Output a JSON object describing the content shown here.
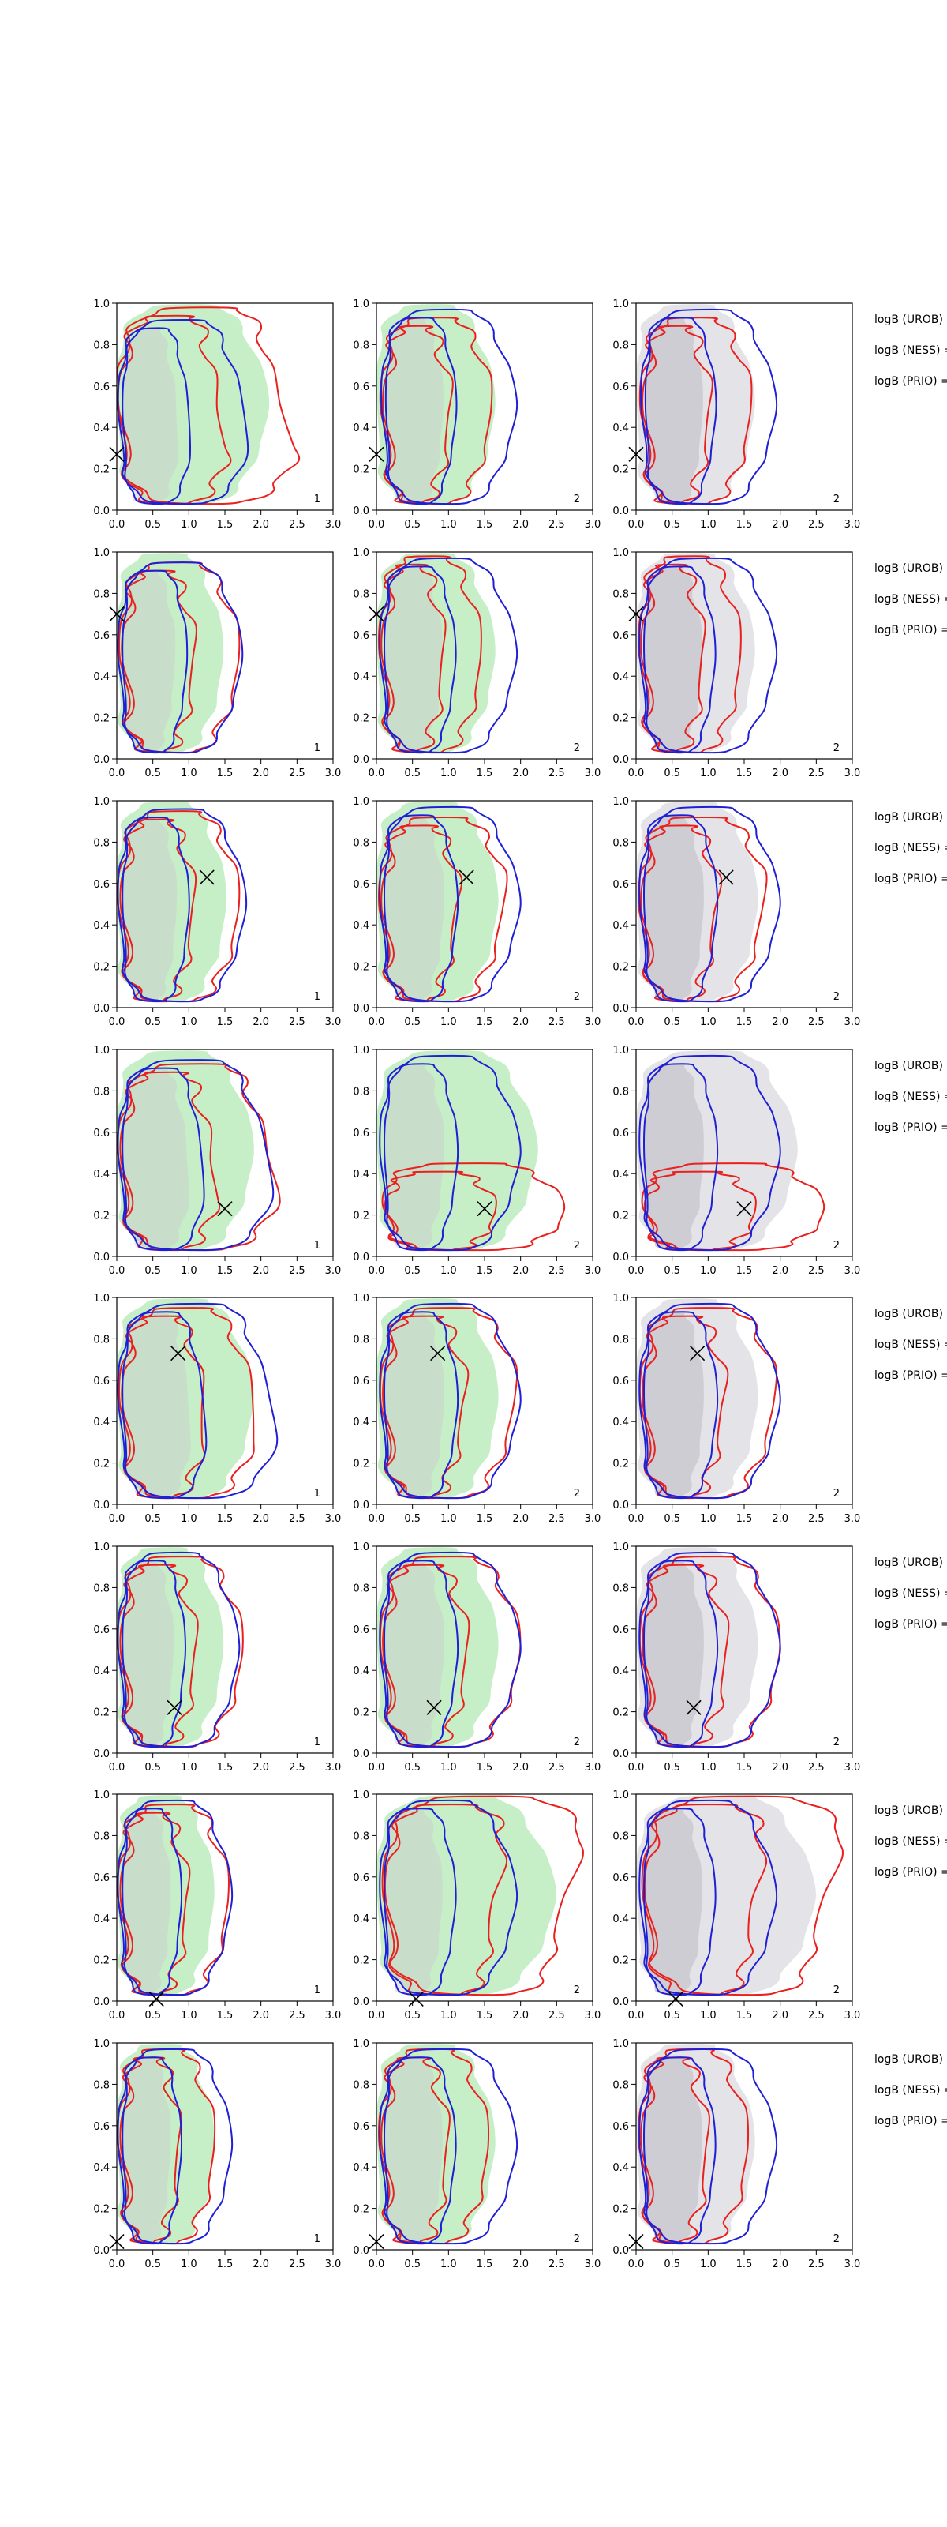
{
  "chart_data": {
    "type": "contour",
    "grid": {
      "rows": 8,
      "cols": 3
    },
    "xlim": [
      0.0,
      3.0
    ],
    "ylim": [
      0.0,
      1.0
    ],
    "xticks": [
      "0.0",
      "0.5",
      "1.0",
      "1.5",
      "2.0",
      "2.5",
      "3.0"
    ],
    "yticks": [
      "0.0",
      "0.2",
      "0.4",
      "0.6",
      "0.8",
      "1.0"
    ],
    "panel_tags": [
      "1",
      "2",
      "2"
    ],
    "bf_labels": [
      "logB (UROB) =",
      "logB (NESS) =",
      "logB (PRIO) ="
    ],
    "colors": {
      "fill_a": "#c7efc7",
      "fill_b": "#e4e4e8",
      "inner_fill": "#c9c9cf",
      "contour_red": "#e8211f",
      "contour_blue": "#1f1fd6",
      "marker": "#000000"
    },
    "rows": [
      {
        "marker": [
          0.0,
          0.27
        ],
        "blue_col1": {
          "xmin": 0.05,
          "xmax": 1.85,
          "ymax": 0.92,
          "mid": 0.35
        },
        "red_col1": {
          "xmin": 0.05,
          "xmax": 2.5,
          "ymax": 0.98,
          "mid": 0.25
        },
        "blue_col23": {
          "xmin": 0.1,
          "xmax": 1.95,
          "ymax": 0.97,
          "mid": 0.5
        },
        "red_col23": {
          "xmin": 0.12,
          "xmax": 1.6,
          "ymax": 0.93,
          "mid": 0.5
        }
      },
      {
        "marker": [
          0.0,
          0.7
        ],
        "blue_col1": {
          "xmin": 0.05,
          "xmax": 1.75,
          "ymax": 0.95,
          "mid": 0.5
        },
        "red_col1": {
          "xmin": 0.1,
          "xmax": 1.7,
          "ymax": 0.95,
          "mid": 0.5
        },
        "blue_col23": {
          "xmin": 0.08,
          "xmax": 1.95,
          "ymax": 0.97,
          "mid": 0.5
        },
        "red_col23": {
          "xmin": 0.1,
          "xmax": 1.45,
          "ymax": 0.98,
          "mid": 0.5
        }
      },
      {
        "marker": [
          1.25,
          0.63
        ],
        "blue_col1": {
          "xmin": 0.05,
          "xmax": 1.8,
          "ymax": 0.96,
          "mid": 0.5
        },
        "red_col1": {
          "xmin": 0.08,
          "xmax": 1.7,
          "ymax": 0.95,
          "mid": 0.5
        },
        "blue_col23": {
          "xmin": 0.08,
          "xmax": 2.0,
          "ymax": 0.97,
          "mid": 0.5
        },
        "red_col23": {
          "xmin": 0.1,
          "xmax": 1.8,
          "ymax": 0.92,
          "mid": 0.55
        }
      },
      {
        "marker": [
          1.5,
          0.23
        ],
        "blue_col1": {
          "xmin": 0.05,
          "xmax": 2.2,
          "ymax": 0.95,
          "mid": 0.35
        },
        "red_col1": {
          "xmin": 0.08,
          "xmax": 2.25,
          "ymax": 0.93,
          "mid": 0.3
        },
        "blue_col23": {
          "xmin": 0.08,
          "xmax": 2.0,
          "ymax": 0.97,
          "mid": 0.5
        },
        "red_col23": {
          "xmin": 0.15,
          "xmax": 2.65,
          "ymax": 0.45,
          "mid": 0.22
        }
      },
      {
        "marker": [
          0.85,
          0.73
        ],
        "blue_col1": {
          "xmin": 0.05,
          "xmax": 2.25,
          "ymax": 0.97,
          "mid": 0.35
        },
        "red_col1": {
          "xmin": 0.1,
          "xmax": 1.95,
          "ymax": 0.95,
          "mid": 0.4
        },
        "blue_col23": {
          "xmin": 0.08,
          "xmax": 2.0,
          "ymax": 0.97,
          "mid": 0.5
        },
        "red_col23": {
          "xmin": 0.12,
          "xmax": 1.95,
          "ymax": 0.95,
          "mid": 0.55
        }
      },
      {
        "marker": [
          0.8,
          0.22
        ],
        "blue_col1": {
          "xmin": 0.05,
          "xmax": 1.7,
          "ymax": 0.97,
          "mid": 0.5
        },
        "red_col1": {
          "xmin": 0.08,
          "xmax": 1.75,
          "ymax": 0.95,
          "mid": 0.5
        },
        "blue_col23": {
          "xmin": 0.08,
          "xmax": 2.0,
          "ymax": 0.97,
          "mid": 0.5
        },
        "red_col23": {
          "xmin": 0.12,
          "xmax": 2.0,
          "ymax": 0.95,
          "mid": 0.5
        }
      },
      {
        "marker": [
          0.55,
          0.01
        ],
        "blue_col1": {
          "xmin": 0.05,
          "xmax": 1.6,
          "ymax": 0.97,
          "mid": 0.5
        },
        "red_col1": {
          "xmin": 0.08,
          "xmax": 1.55,
          "ymax": 0.95,
          "mid": 0.5
        },
        "blue_col23": {
          "xmin": 0.08,
          "xmax": 1.95,
          "ymax": 0.97,
          "mid": 0.5
        },
        "red_col23": {
          "xmin": 0.15,
          "xmax": 2.95,
          "ymax": 0.99,
          "mid": 0.85
        }
      },
      {
        "marker": [
          0.0,
          0.04
        ],
        "blue_col1": {
          "xmin": 0.05,
          "xmax": 1.6,
          "ymax": 0.97,
          "mid": 0.5
        },
        "red_col1": {
          "xmin": 0.08,
          "xmax": 1.35,
          "ymax": 0.97,
          "mid": 0.5
        },
        "blue_col23": {
          "xmin": 0.08,
          "xmax": 1.95,
          "ymax": 0.97,
          "mid": 0.5
        },
        "red_col23": {
          "xmin": 0.1,
          "xmax": 1.55,
          "ymax": 0.97,
          "mid": 0.5
        }
      }
    ]
  }
}
